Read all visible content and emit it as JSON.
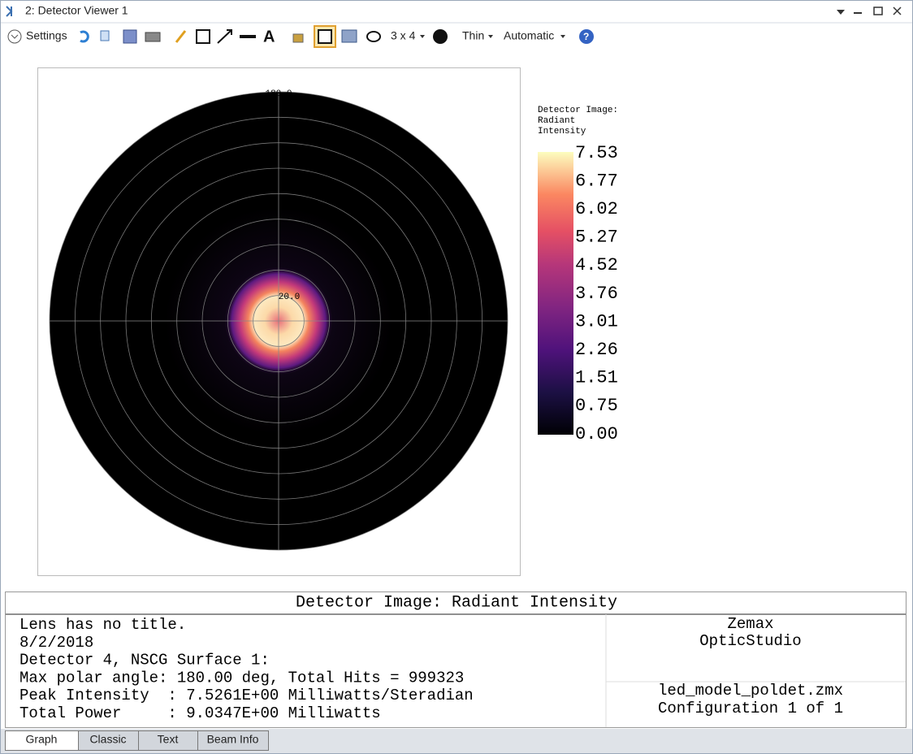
{
  "window": {
    "title": "2: Detector Viewer 1"
  },
  "toolbar": {
    "settings": "Settings",
    "layout": "3 x 4",
    "line": "Thin",
    "scale": "Automatic"
  },
  "plot": {
    "ring_labels": [
      "180.0",
      "20.0"
    ]
  },
  "colorbar": {
    "title": [
      "Detector Image:",
      "Radiant",
      "Intensity"
    ],
    "ticks": [
      "7.53",
      "6.77",
      "6.02",
      "5.27",
      "4.52",
      "3.76",
      "3.01",
      "2.26",
      "1.51",
      "0.75",
      "0.00"
    ]
  },
  "footer": {
    "title": "Detector Image: Radiant Intensity",
    "lines": [
      "Lens has no title.",
      "8/2/2018",
      "Detector 4, NSCG Surface 1:",
      "Max polar angle: 180.00 deg, Total Hits = 999323",
      "Peak Intensity  : 7.5261E+00 Milliwatts/Steradian",
      "Total Power     : 9.0347E+00 Milliwatts"
    ],
    "company": [
      "Zemax",
      "OpticStudio"
    ],
    "file": [
      "led_model_poldet.zmx",
      "Configuration 1 of 1"
    ]
  },
  "tabs": [
    "Graph",
    "Classic",
    "Text",
    "Beam Info"
  ]
}
